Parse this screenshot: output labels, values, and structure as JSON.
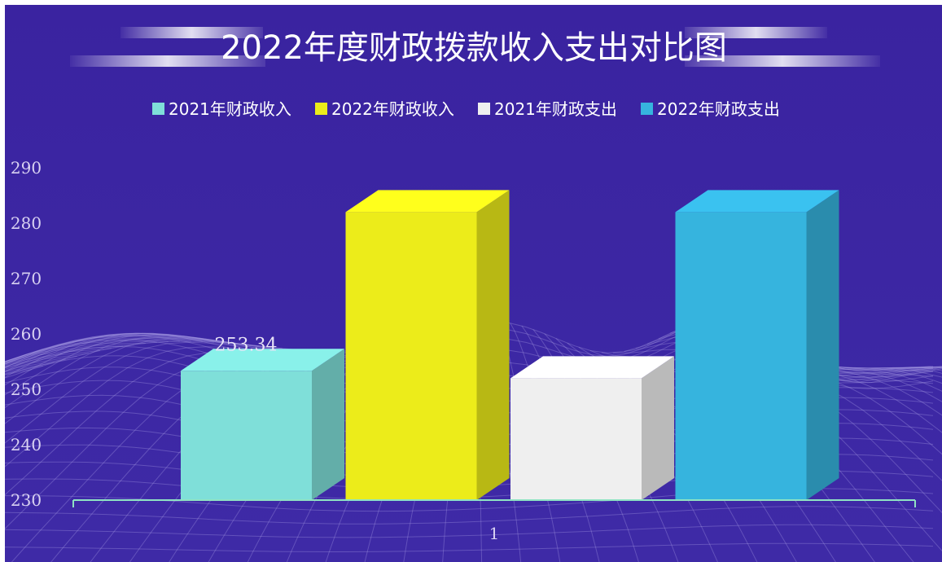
{
  "chart_data": {
    "type": "bar",
    "title": "2022年度财政拨款收入支出对比图",
    "categories": [
      "1"
    ],
    "series": [
      {
        "name": "2021年财政收入",
        "values": [
          253.34
        ],
        "color": "#7fdfd9",
        "data_label": "253.34"
      },
      {
        "name": "2022年财政收入",
        "values": [
          282
        ],
        "color": "#ecec1a"
      },
      {
        "name": "2021年财政支出",
        "values": [
          252
        ],
        "color": "#efefef"
      },
      {
        "name": "2022年财政支出",
        "values": [
          282
        ],
        "color": "#36b4de"
      }
    ],
    "y_ticks": [
      "230",
      "240",
      "250",
      "260",
      "270",
      "280",
      "290"
    ],
    "ylim": [
      230,
      290
    ],
    "xlabel": "",
    "ylabel": "",
    "legend_position": "top",
    "grid": false,
    "bar_style": "3d",
    "background_color": "#3d27a0",
    "axis_color": "#8fe3c3"
  }
}
